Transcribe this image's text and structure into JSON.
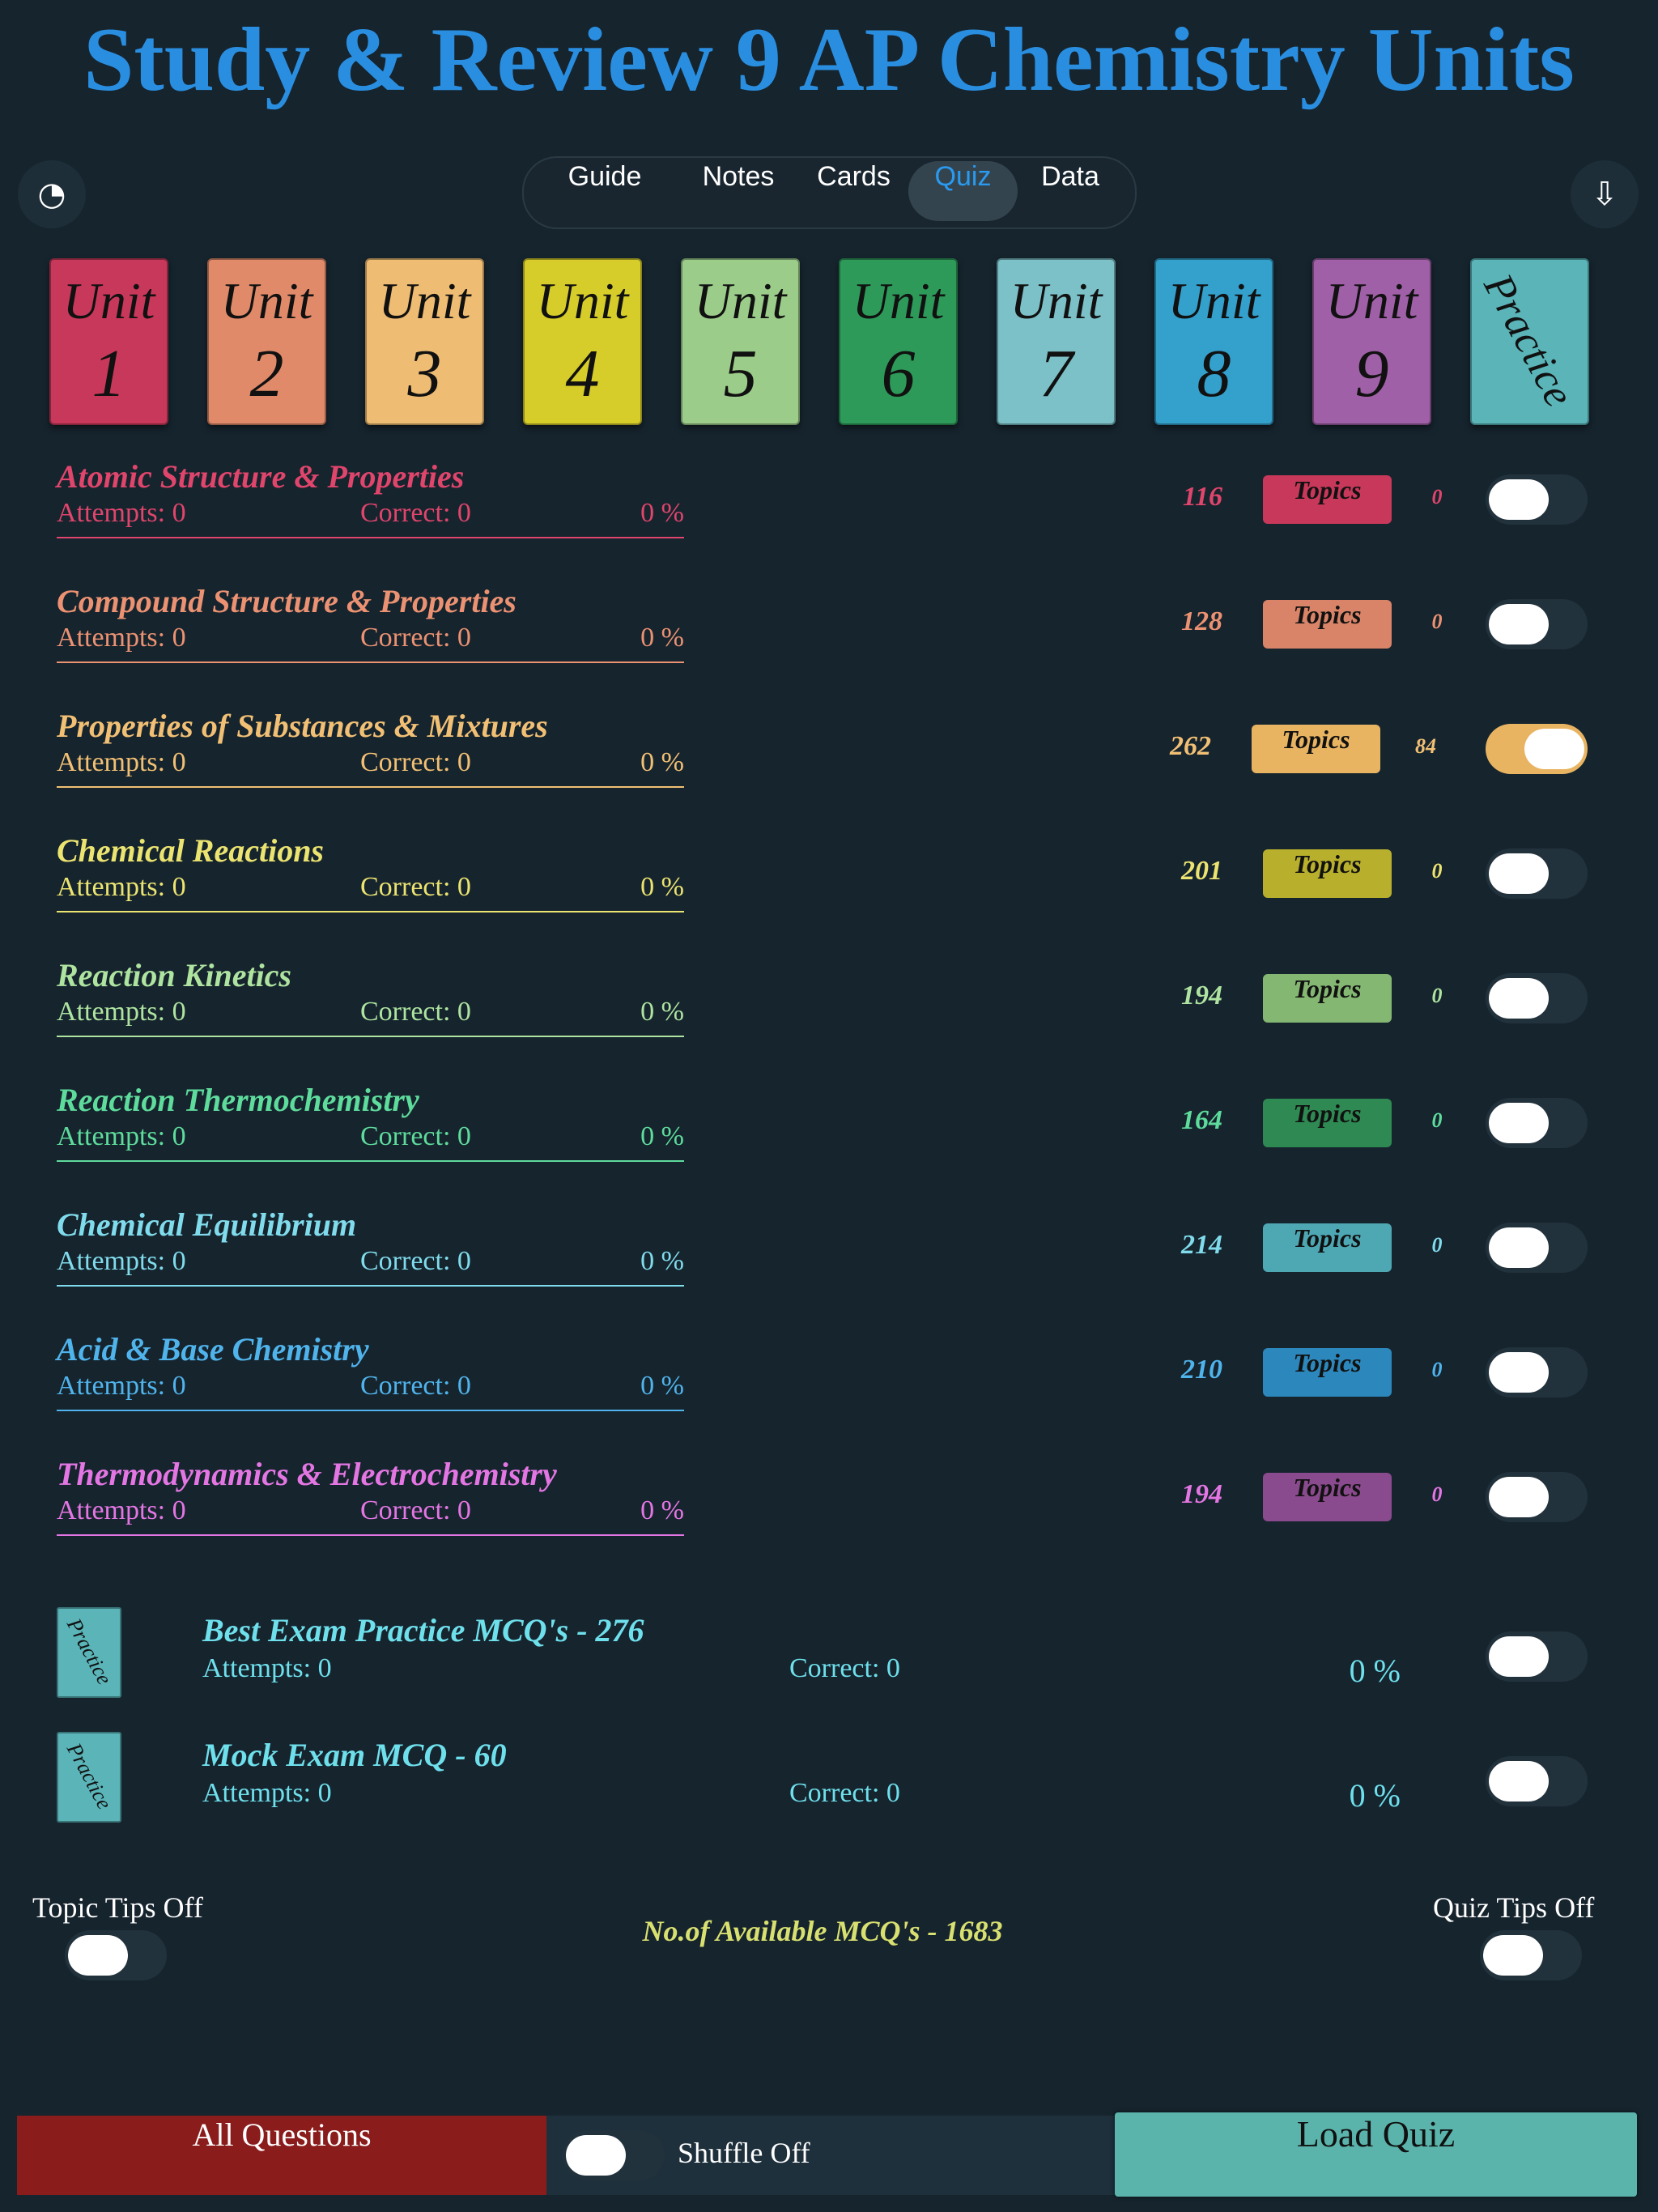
{
  "header": {
    "title": "Study & Review 9 AP Chemistry Units"
  },
  "tabs": {
    "items": [
      "Guide",
      "Notes",
      "Cards",
      "Quiz",
      "Data"
    ],
    "active": 3
  },
  "unit_cards": [
    {
      "label": "Unit",
      "number": "1",
      "color": "#c8385a"
    },
    {
      "label": "Unit",
      "number": "2",
      "color": "#e08a6a"
    },
    {
      "label": "Unit",
      "number": "3",
      "color": "#eebc72"
    },
    {
      "label": "Unit",
      "number": "4",
      "color": "#d6cc2a"
    },
    {
      "label": "Unit",
      "number": "5",
      "color": "#9ccc8a"
    },
    {
      "label": "Unit",
      "number": "6",
      "color": "#2e9a5a"
    },
    {
      "label": "Unit",
      "number": "7",
      "color": "#7cc0c8"
    },
    {
      "label": "Unit",
      "number": "8",
      "color": "#34a0cc"
    },
    {
      "label": "Unit",
      "number": "9",
      "color": "#a060a8"
    },
    {
      "label": "Practice",
      "color": "#5ab4b8"
    }
  ],
  "units": [
    {
      "name": "Atomic Structure & Properties",
      "attempts": "Attempts:  0",
      "correct": "Correct:  0",
      "percent": "0 %",
      "count": "116",
      "button": "Topics",
      "selected": "0",
      "on": false,
      "color": "#e0456c",
      "button_color": "#c8385a"
    },
    {
      "name": "Compound Structure & Properties",
      "attempts": "Attempts:  0",
      "correct": "Correct:  0",
      "percent": "0 %",
      "count": "128",
      "button": "Topics",
      "selected": "0",
      "on": false,
      "color": "#ec9272",
      "button_color": "#d98468"
    },
    {
      "name": "Properties of Substances & Mixtures",
      "attempts": "Attempts:  0",
      "correct": "Correct:  0",
      "percent": "0 %",
      "count": "262",
      "button": "Topics",
      "selected": "84",
      "on": true,
      "color": "#f2c074",
      "button_color": "#e8b462"
    },
    {
      "name": "Chemical Reactions",
      "attempts": "Attempts:  0",
      "correct": "Correct:  0",
      "percent": "0 %",
      "count": "201",
      "button": "Topics",
      "selected": "0",
      "on": false,
      "color": "#ece470",
      "button_color": "#b8b02c"
    },
    {
      "name": "Reaction Kinetics",
      "attempts": "Attempts:  0",
      "correct": "Correct:  0",
      "percent": "0 %",
      "count": "194",
      "button": "Topics",
      "selected": "0",
      "on": false,
      "color": "#aee4a0",
      "button_color": "#84b872"
    },
    {
      "name": "Reaction Thermochemistry",
      "attempts": "Attempts:  0",
      "correct": "Correct:  0",
      "percent": "0 %",
      "count": "164",
      "button": "Topics",
      "selected": "0",
      "on": false,
      "color": "#5edc9c",
      "button_color": "#2e8a52"
    },
    {
      "name": "Chemical Equilibrium",
      "attempts": "Attempts:  0",
      "correct": "Correct:  0",
      "percent": "0 %",
      "count": "214",
      "button": "Topics",
      "selected": "0",
      "on": false,
      "color": "#80dcec",
      "button_color": "#4ea8b4"
    },
    {
      "name": "Acid & Base Chemistry",
      "attempts": "Attempts:  0",
      "correct": "Correct:  0",
      "percent": "0 %",
      "count": "210",
      "button": "Topics",
      "selected": "0",
      "on": false,
      "color": "#50b4ec",
      "button_color": "#2c88bc"
    },
    {
      "name": "Thermodynamics & Electrochemistry",
      "attempts": "Attempts:  0",
      "correct": "Correct:  0",
      "percent": "0 %",
      "count": "194",
      "button": "Topics",
      "selected": "0",
      "on": false,
      "color": "#e476e4",
      "button_color": "#8a4a8e"
    }
  ],
  "practice": [
    {
      "icon": "Practice",
      "name": "Best Exam Practice MCQ's - 276",
      "attempts": "Attempts:  0",
      "correct": "Correct:  0",
      "percent": "0 %"
    },
    {
      "icon": "Practice",
      "name": "Mock Exam MCQ - 60",
      "attempts": "Attempts: 0",
      "correct": "Correct: 0",
      "percent": "0 %"
    }
  ],
  "footer": {
    "topic_tips": "Topic Tips Off",
    "available": "No.of Available MCQ's - 1683",
    "quiz_tips": "Quiz Tips Off"
  },
  "bottom_bar": {
    "all_questions": "All Questions",
    "shuffle": "Shuffle Off",
    "load_quiz": "Load Quiz"
  }
}
